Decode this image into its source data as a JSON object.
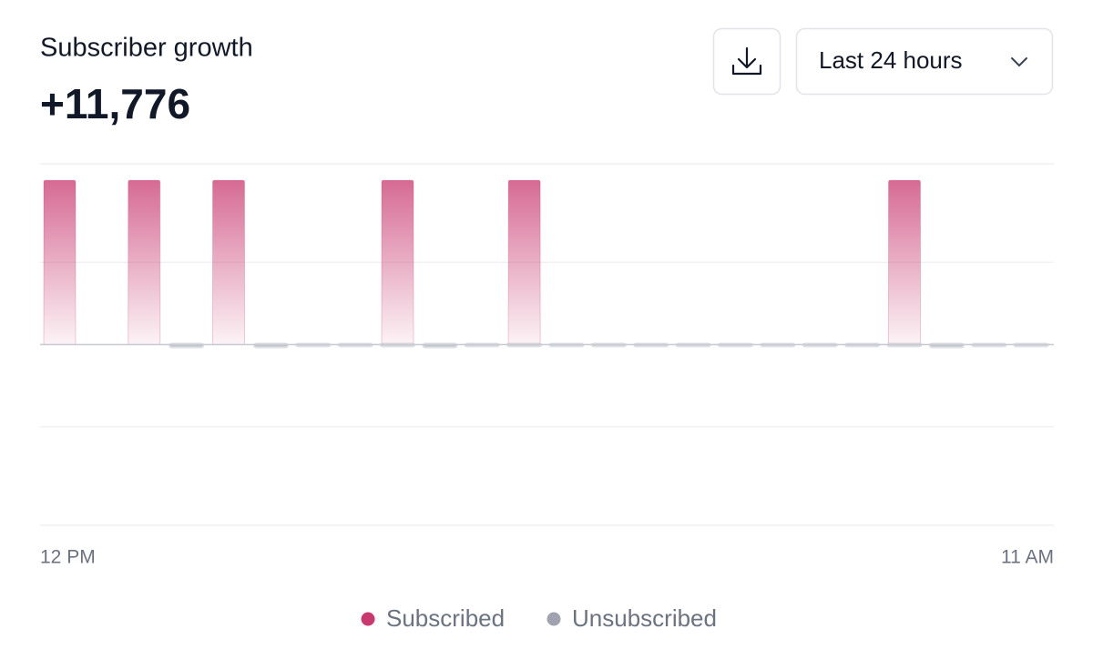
{
  "header": {
    "title": "Subscriber growth",
    "total": "+11,776",
    "range_select": "Last 24 hours"
  },
  "chart_data": {
    "type": "bar",
    "categories": [
      "12 PM",
      null,
      null,
      null,
      null,
      null,
      null,
      null,
      null,
      null,
      null,
      null,
      null,
      null,
      null,
      null,
      null,
      null,
      null,
      null,
      null,
      null,
      null,
      "11 AM"
    ],
    "series": [
      {
        "name": "Subscribed",
        "color": "#c8396f",
        "values": [
          2000,
          0,
          2000,
          0,
          2000,
          0,
          0,
          0,
          2000,
          0,
          0,
          2000,
          0,
          0,
          0,
          0,
          0,
          0,
          0,
          0,
          2000,
          0,
          0,
          0
        ]
      },
      {
        "name": "Unsubscribed",
        "color": "#a0a3af",
        "values": [
          0,
          0,
          0,
          -24,
          0,
          -24,
          -8,
          -8,
          -8,
          -24,
          -8,
          -8,
          -8,
          -8,
          -8,
          -8,
          -8,
          -8,
          -8,
          -8,
          -8,
          -24,
          -8,
          -8
        ]
      }
    ],
    "ylim": [
      -2200,
      2200
    ],
    "gridlines": [
      -2200,
      -1000,
      0,
      1000,
      2200
    ],
    "grid": true,
    "stacked": true
  }
}
